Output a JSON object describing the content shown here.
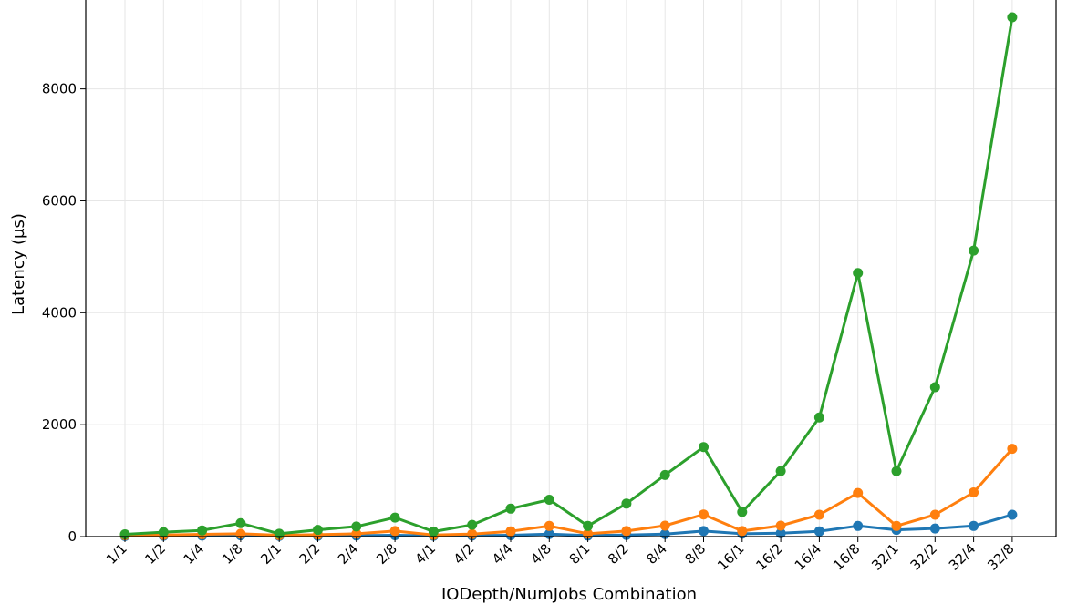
{
  "chart_data": {
    "type": "line",
    "title": "",
    "xlabel": "IODepth/NumJobs Combination",
    "ylabel": "Latency (µs)",
    "categories": [
      "1/1",
      "1/2",
      "1/4",
      "1/8",
      "2/1",
      "2/2",
      "2/4",
      "2/8",
      "4/1",
      "4/2",
      "4/4",
      "4/8",
      "8/1",
      "8/2",
      "8/4",
      "8/8",
      "16/1",
      "16/2",
      "16/4",
      "16/8",
      "32/1",
      "32/2",
      "32/4",
      "32/8"
    ],
    "ylim": [
      0,
      9300
    ],
    "yticks": [
      0,
      2000,
      4000,
      6000,
      8000
    ],
    "grid": true,
    "series": [
      {
        "color": "#1f77b4",
        "values": [
          12,
          15,
          18,
          22,
          13,
          15,
          18,
          25,
          15,
          18,
          25,
          45,
          20,
          30,
          45,
          100,
          50,
          60,
          95,
          190,
          120,
          145,
          190,
          390
        ]
      },
      {
        "color": "#ff7f0e",
        "values": [
          25,
          30,
          40,
          50,
          25,
          35,
          50,
          100,
          30,
          45,
          95,
          190,
          50,
          100,
          195,
          395,
          100,
          195,
          390,
          780,
          190,
          390,
          790,
          1570
        ]
      },
      {
        "color": "#2ca02c",
        "values": [
          40,
          80,
          110,
          240,
          50,
          120,
          180,
          340,
          90,
          210,
          500,
          660,
          190,
          590,
          1100,
          1600,
          440,
          1170,
          2130,
          4710,
          1170,
          2670,
          5110,
          9280
        ]
      }
    ]
  }
}
